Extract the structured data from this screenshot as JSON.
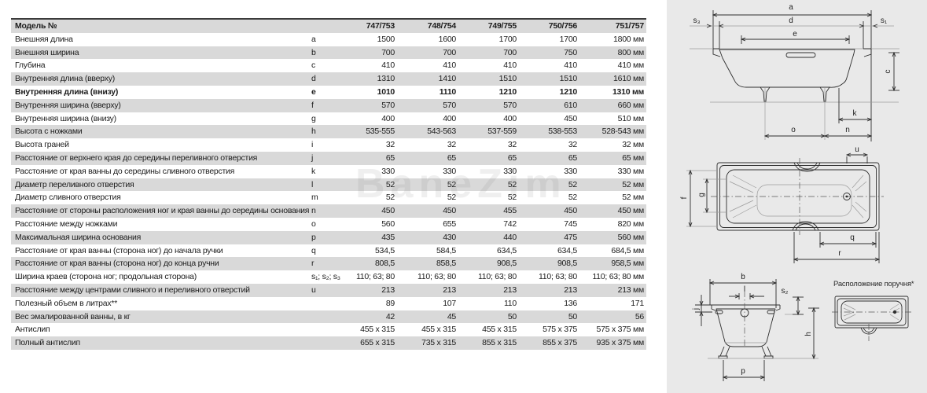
{
  "table": {
    "header": {
      "label": "Модель №",
      "models": [
        "747/753",
        "748/754",
        "749/755",
        "750/756",
        "751/757"
      ]
    },
    "rows": [
      {
        "label": "Внешняя длина",
        "letter": "a",
        "values": [
          "1500",
          "1600",
          "1700",
          "1700",
          "1800"
        ],
        "unit": "мм",
        "bold": false
      },
      {
        "label": "Внешняя ширина",
        "letter": "b",
        "values": [
          "700",
          "700",
          "700",
          "750",
          "800"
        ],
        "unit": "мм",
        "bold": false
      },
      {
        "label": "Глубина",
        "letter": "c",
        "values": [
          "410",
          "410",
          "410",
          "410",
          "410"
        ],
        "unit": "мм",
        "bold": false
      },
      {
        "label": "Внутренняя длина (вверху)",
        "letter": "d",
        "values": [
          "1310",
          "1410",
          "1510",
          "1510",
          "1610"
        ],
        "unit": "мм",
        "bold": false
      },
      {
        "label": "Внутренняя длина (внизу)",
        "letter": "e",
        "values": [
          "1010",
          "1110",
          "1210",
          "1210",
          "1310"
        ],
        "unit": "мм",
        "bold": true
      },
      {
        "label": "Внутренняя ширина (вверху)",
        "letter": "f",
        "values": [
          "570",
          "570",
          "570",
          "610",
          "660"
        ],
        "unit": "мм",
        "bold": false
      },
      {
        "label": "Внутренняя ширина (внизу)",
        "letter": "g",
        "values": [
          "400",
          "400",
          "400",
          "450",
          "510"
        ],
        "unit": "мм",
        "bold": false
      },
      {
        "label": "Высота с ножками",
        "letter": "h",
        "values": [
          "535-555",
          "543-563",
          "537-559",
          "538-553",
          "528-543"
        ],
        "unit": "мм",
        "bold": false
      },
      {
        "label": "Высота граней",
        "letter": "i",
        "values": [
          "32",
          "32",
          "32",
          "32",
          "32"
        ],
        "unit": "мм",
        "bold": false
      },
      {
        "label": "Расстояние от верхнего края до середины переливного отверстия",
        "letter": "j",
        "values": [
          "65",
          "65",
          "65",
          "65",
          "65"
        ],
        "unit": "мм",
        "bold": false
      },
      {
        "label": "Расстояние от края ванны до середины сливного отверстия",
        "letter": "k",
        "values": [
          "330",
          "330",
          "330",
          "330",
          "330"
        ],
        "unit": "мм",
        "bold": false
      },
      {
        "label": "Диаметр переливного отверстия",
        "letter": "l",
        "values": [
          "52",
          "52",
          "52",
          "52",
          "52"
        ],
        "unit": "мм",
        "bold": false
      },
      {
        "label": "Диаметр сливного отверстия",
        "letter": "m",
        "values": [
          "52",
          "52",
          "52",
          "52",
          "52"
        ],
        "unit": "мм",
        "bold": false
      },
      {
        "label": "Расстояние от стороны расположения ног и края ванны до середины основания",
        "letter": "n",
        "values": [
          "450",
          "450",
          "455",
          "450",
          "450"
        ],
        "unit": "мм",
        "bold": false
      },
      {
        "label": "Расстояние между ножками",
        "letter": "o",
        "values": [
          "560",
          "655",
          "742",
          "745",
          "820"
        ],
        "unit": "мм",
        "bold": false
      },
      {
        "label": "Максимальная ширина основания",
        "letter": "p",
        "values": [
          "435",
          "430",
          "440",
          "475",
          "560"
        ],
        "unit": "мм",
        "bold": false
      },
      {
        "label": "Расстояние от края ванны (сторона ног) до начала ручки",
        "letter": "q",
        "values": [
          "534,5",
          "584,5",
          "634,5",
          "634,5",
          "684,5"
        ],
        "unit": "мм",
        "bold": false
      },
      {
        "label": "Расстояние от края ванны (сторона ног) до конца ручни",
        "letter": "r",
        "values": [
          "808,5",
          "858,5",
          "908,5",
          "908,5",
          "958,5"
        ],
        "unit": "мм",
        "bold": false
      },
      {
        "label": "Ширина краев (сторона ног; продольная сторона)",
        "letter": "s₁; s₂; s₃",
        "values": [
          "110; 63; 80",
          "110; 63; 80",
          "110; 63; 80",
          "110; 63; 80",
          "110; 63; 80"
        ],
        "unit": "мм",
        "bold": false
      },
      {
        "label": "Расстояние между центрами сливного и переливного отверстий",
        "letter": "u",
        "values": [
          "213",
          "213",
          "213",
          "213",
          "213"
        ],
        "unit": "мм",
        "bold": false
      },
      {
        "label": "Полезный объем в литрах**",
        "letter": "",
        "values": [
          "89",
          "107",
          "110",
          "136",
          "171"
        ],
        "unit": "",
        "bold": false
      },
      {
        "label": "Вес эмалированной ванны, в кг",
        "letter": "",
        "values": [
          "42",
          "45",
          "50",
          "50",
          "56"
        ],
        "unit": "",
        "bold": false
      },
      {
        "label": "Антислип",
        "letter": "",
        "values": [
          "455 x 315",
          "455 x 315",
          "455 x 315",
          "575 x 375",
          "575 x 375"
        ],
        "unit": "мм",
        "bold": false
      },
      {
        "label": "Полный антислип",
        "letter": "",
        "values": [
          "655 x 315",
          "735 x 315",
          "855 x 315",
          "855 x 375",
          "935 x 375"
        ],
        "unit": "мм",
        "bold": false
      }
    ]
  },
  "watermark": "BaneZim",
  "diagrams": {
    "side_view": {
      "labels": {
        "a": "a",
        "d": "d",
        "e": "e",
        "s3": "s₃",
        "s1": "s₁",
        "c": "c",
        "k": "k",
        "o": "o",
        "n": "n"
      }
    },
    "top_view": {
      "labels": {
        "u": "u",
        "f": "f",
        "g": "g",
        "q": "q",
        "r": "r"
      }
    },
    "end_view": {
      "labels": {
        "b": "b",
        "l": "l",
        "s2": "s₂",
        "j": "j",
        "h": "h",
        "p": "p"
      }
    },
    "handle_view": {
      "title": "Расположение поручня*"
    }
  },
  "colors": {
    "row_stripe": "#d9d9d9",
    "panel_bg": "#e9e9e9",
    "rule": "#3c3c3c",
    "text": "#1c1c1c"
  }
}
